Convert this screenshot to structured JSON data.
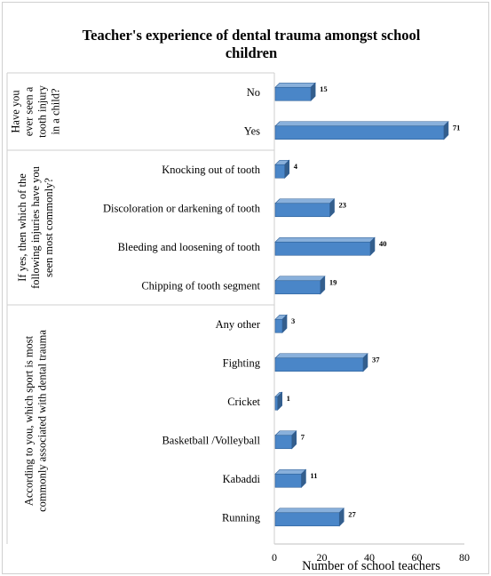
{
  "chart_data": {
    "type": "bar",
    "orientation": "horizontal",
    "title_lines": [
      "Teacher's experience of dental trauma amongst school",
      "children"
    ],
    "xlabel": "Number of school teachers",
    "xlim": [
      0,
      80
    ],
    "xticks": [
      0,
      20,
      40,
      60,
      80
    ],
    "bar_color": "#4a86c8",
    "groups": [
      {
        "label_lines": [
          "Have you",
          "ever seen a",
          "tooth injury",
          "in a child?"
        ],
        "categories": [
          "No",
          "Yes"
        ],
        "values": [
          15,
          71
        ]
      },
      {
        "label_lines": [
          "If yes, then which of the",
          "following injuries have you",
          "seen most commonly?"
        ],
        "categories": [
          "Knocking out of tooth",
          "Discoloration or darkening of tooth",
          "Bleeding and loosening of tooth",
          "Chipping of tooth segment"
        ],
        "values": [
          4,
          23,
          40,
          19
        ]
      },
      {
        "label_lines": [
          "According to you, which sport is most",
          "commonly associated with dental trauma"
        ],
        "categories": [
          "Any other",
          "Fighting",
          "Cricket",
          "Basketball /Volleyball",
          "Kabaddi",
          "Running"
        ],
        "values": [
          3,
          37,
          1,
          7,
          11,
          27
        ]
      }
    ]
  }
}
